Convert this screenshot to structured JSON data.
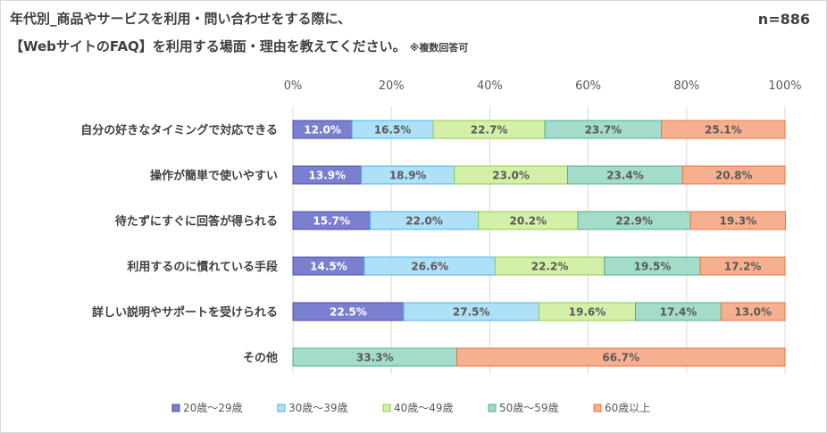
{
  "n_label": "n=886",
  "chart_data": {
    "type": "bar",
    "orientation": "horizontal",
    "stacked": "percent",
    "title_line1": "年代別_商品やサービスを利用・問い合わせをする際に、",
    "title_line2": "【WebサイトのFAQ】を利用する場面・理由を教えてください。",
    "title_note": "※複数回答可",
    "xlim": [
      0,
      100
    ],
    "x_ticks": [
      "0%",
      "20%",
      "40%",
      "60%",
      "80%",
      "100%"
    ],
    "legend_position": "bottom",
    "categories": [
      "自分の好きなタイミングで対応できる",
      "操作が簡単で使いやすい",
      "待たずにすぐに回答が得られる",
      "利用するのに慣れている手段",
      "詳しい説明やサポートを受けられる",
      "その他"
    ],
    "series": [
      {
        "name": "20歳～29歳",
        "color": "#7b7fcf",
        "border": "#4a4fa8",
        "label_color": "#ffffff",
        "values": [
          12.0,
          13.9,
          15.7,
          14.5,
          22.5,
          0
        ]
      },
      {
        "name": "30歳～39歳",
        "color": "#aee0f8",
        "border": "#4fb3e6",
        "label_color": "#595959",
        "values": [
          16.5,
          18.9,
          22.0,
          26.6,
          27.5,
          0
        ]
      },
      {
        "name": "40歳～49歳",
        "color": "#d4f0a8",
        "border": "#92cc4a",
        "label_color": "#595959",
        "values": [
          22.7,
          23.0,
          20.2,
          22.2,
          19.6,
          0
        ]
      },
      {
        "name": "50歳～59歳",
        "color": "#a3dccb",
        "border": "#4fae92",
        "label_color": "#595959",
        "values": [
          23.7,
          23.4,
          22.9,
          19.5,
          17.4,
          33.3
        ]
      },
      {
        "name": "60歳以上",
        "color": "#f7b08f",
        "border": "#e9733f",
        "label_color": "#595959",
        "values": [
          25.1,
          20.8,
          19.3,
          17.2,
          13.0,
          66.7
        ]
      }
    ]
  }
}
